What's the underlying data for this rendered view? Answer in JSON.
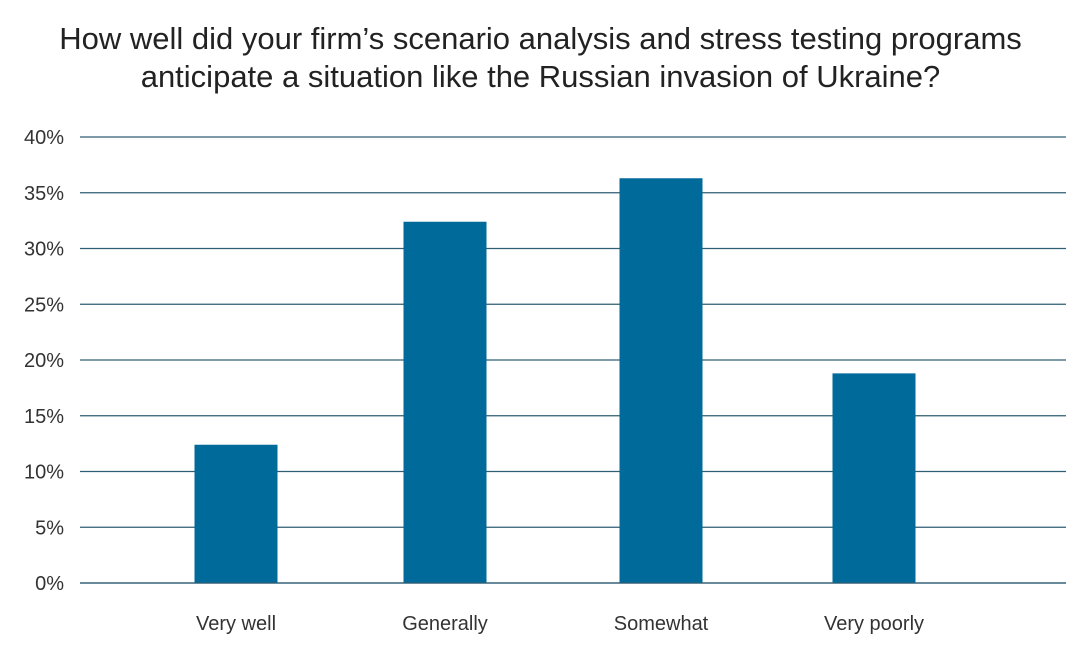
{
  "chart_data": {
    "type": "bar",
    "title_lines": [
      "How well did your firm’s scenario analysis and stress testing programs",
      "anticipate a situation like the Russian invasion of Ukraine?"
    ],
    "title": "How well did your firm’s scenario analysis and stress testing programs anticipate a situation like the Russian invasion of Ukraine?",
    "categories": [
      "Very well",
      "Generally",
      "Somewhat",
      "Very poorly"
    ],
    "values": [
      12.4,
      32.4,
      36.3,
      18.8
    ],
    "value_unit": "%",
    "xlabel": "",
    "ylabel": "",
    "ylim": [
      0,
      40
    ],
    "yticks": [
      0,
      5,
      10,
      15,
      20,
      25,
      30,
      35,
      40
    ],
    "ytick_labels": [
      "0%",
      "5%",
      "10%",
      "15%",
      "20%",
      "25%",
      "30%",
      "35%",
      "40%"
    ],
    "grid": true,
    "legend": "none",
    "bar_color": "#006a9a",
    "grid_color": "#2f5d73"
  }
}
